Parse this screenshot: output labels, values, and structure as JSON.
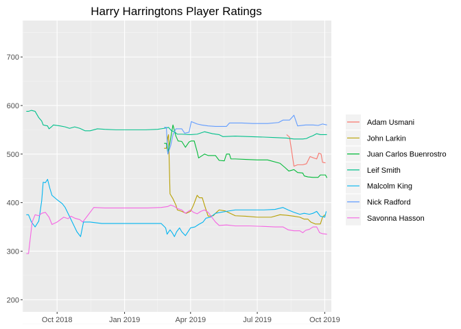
{
  "chart_data": {
    "type": "line",
    "title": "Harry Harringtons Player Ratings",
    "xlabel": "",
    "ylabel": "",
    "x_ticks": [
      "Oct 2018",
      "Jan 2019",
      "Apr 2019",
      "Jul 2019",
      "Oct 2019"
    ],
    "y_ticks": [
      200,
      300,
      400,
      500,
      600,
      700
    ],
    "xlim": [
      "2018-08-15",
      "2019-10-10"
    ],
    "ylim": [
      175,
      775
    ],
    "grid": true,
    "legend_position": "right",
    "colors": {
      "panel": "#ebebeb",
      "grid_major": "#ffffff",
      "text": "#4d4d4d"
    },
    "series": [
      {
        "name": "Adam Usmani",
        "color": "#F8766D",
        "points": [
          [
            "2019-08-10",
            540
          ],
          [
            "2019-08-14",
            535
          ],
          [
            "2019-08-20",
            475
          ],
          [
            "2019-08-25",
            478
          ],
          [
            "2019-09-01",
            478
          ],
          [
            "2019-09-06",
            480
          ],
          [
            "2019-09-11",
            495
          ],
          [
            "2019-09-16",
            492
          ],
          [
            "2019-09-20",
            490
          ],
          [
            "2019-09-23",
            502
          ],
          [
            "2019-09-26",
            500
          ],
          [
            "2019-09-28",
            483
          ],
          [
            "2019-10-02",
            482
          ]
        ]
      },
      {
        "name": "John Larkin",
        "color": "#B79F00",
        "points": [
          [
            "2019-02-24",
            512
          ],
          [
            "2019-02-27",
            512
          ],
          [
            "2019-03-01",
            535
          ],
          [
            "2019-03-02",
            540
          ],
          [
            "2019-03-04",
            418
          ],
          [
            "2019-03-08",
            408
          ],
          [
            "2019-03-12",
            395
          ],
          [
            "2019-03-14",
            385
          ],
          [
            "2019-03-20",
            382
          ],
          [
            "2019-03-26",
            378
          ],
          [
            "2019-04-01",
            382
          ],
          [
            "2019-04-05",
            395
          ],
          [
            "2019-04-10",
            415
          ],
          [
            "2019-04-13",
            410
          ],
          [
            "2019-04-17",
            410
          ],
          [
            "2019-04-20",
            395
          ],
          [
            "2019-04-25",
            372
          ],
          [
            "2019-05-02",
            373
          ],
          [
            "2019-05-05",
            378
          ],
          [
            "2019-05-10",
            385
          ],
          [
            "2019-05-18",
            383
          ],
          [
            "2019-06-01",
            373
          ],
          [
            "2019-06-15",
            372
          ],
          [
            "2019-07-01",
            370
          ],
          [
            "2019-07-20",
            370
          ],
          [
            "2019-08-01",
            375
          ],
          [
            "2019-08-10",
            374
          ],
          [
            "2019-08-20",
            372
          ],
          [
            "2019-08-28",
            370
          ],
          [
            "2019-09-03",
            366
          ],
          [
            "2019-09-08",
            366
          ],
          [
            "2019-09-12",
            360
          ],
          [
            "2019-09-18",
            356
          ],
          [
            "2019-09-25",
            356
          ],
          [
            "2019-09-28",
            370
          ],
          [
            "2019-10-01",
            375
          ]
        ]
      },
      {
        "name": "Juan Carlos Buenrostro",
        "color": "#00BA38",
        "points": [
          [
            "2019-02-24",
            522
          ],
          [
            "2019-02-27",
            522
          ],
          [
            "2019-03-01",
            503
          ],
          [
            "2019-03-04",
            525
          ],
          [
            "2019-03-08",
            560
          ],
          [
            "2019-03-12",
            537
          ],
          [
            "2019-03-15",
            527
          ],
          [
            "2019-03-20",
            526
          ],
          [
            "2019-03-25",
            514
          ],
          [
            "2019-03-30",
            525
          ],
          [
            "2019-04-02",
            527
          ],
          [
            "2019-04-06",
            527
          ],
          [
            "2019-04-10",
            505
          ],
          [
            "2019-04-12",
            492
          ],
          [
            "2019-04-15",
            495
          ],
          [
            "2019-04-20",
            500
          ],
          [
            "2019-04-25",
            497
          ],
          [
            "2019-05-05",
            497
          ],
          [
            "2019-05-10",
            487
          ],
          [
            "2019-05-17",
            486
          ],
          [
            "2019-05-20",
            500
          ],
          [
            "2019-05-24",
            500
          ],
          [
            "2019-05-26",
            490
          ],
          [
            "2019-06-01",
            490
          ],
          [
            "2019-06-15",
            489
          ],
          [
            "2019-07-01",
            488
          ],
          [
            "2019-07-15",
            488
          ],
          [
            "2019-08-01",
            481
          ],
          [
            "2019-08-08",
            472
          ],
          [
            "2019-08-13",
            465
          ],
          [
            "2019-08-20",
            468
          ],
          [
            "2019-08-25",
            462
          ],
          [
            "2019-09-01",
            461
          ],
          [
            "2019-09-03",
            455
          ],
          [
            "2019-09-08",
            453
          ],
          [
            "2019-09-15",
            452
          ],
          [
            "2019-09-22",
            452
          ],
          [
            "2019-09-25",
            457
          ],
          [
            "2019-10-02",
            457
          ],
          [
            "2019-10-04",
            451
          ]
        ]
      },
      {
        "name": "Leif Smith",
        "color": "#00C08B",
        "points": [
          [
            "2018-08-20",
            588
          ],
          [
            "2018-08-23",
            588
          ],
          [
            "2018-08-27",
            590
          ],
          [
            "2018-09-01",
            588
          ],
          [
            "2018-09-06",
            575
          ],
          [
            "2018-09-10",
            568
          ],
          [
            "2018-09-12",
            560
          ],
          [
            "2018-09-18",
            558
          ],
          [
            "2018-09-20",
            552
          ],
          [
            "2018-09-24",
            557
          ],
          [
            "2018-09-26",
            560
          ],
          [
            "2018-10-05",
            558
          ],
          [
            "2018-10-12",
            556
          ],
          [
            "2018-10-18",
            553
          ],
          [
            "2018-10-25",
            556
          ],
          [
            "2018-11-01",
            553
          ],
          [
            "2018-11-08",
            548
          ],
          [
            "2018-11-15",
            548
          ],
          [
            "2018-11-25",
            552
          ],
          [
            "2018-12-05",
            551
          ],
          [
            "2018-12-20",
            550
          ],
          [
            "2019-01-10",
            550
          ],
          [
            "2019-01-30",
            550
          ],
          [
            "2019-02-15",
            551
          ],
          [
            "2019-02-24",
            553
          ],
          [
            "2019-03-02",
            555
          ],
          [
            "2019-03-06",
            548
          ],
          [
            "2019-03-10",
            546
          ],
          [
            "2019-03-14",
            541
          ],
          [
            "2019-03-20",
            541
          ],
          [
            "2019-04-01",
            540
          ],
          [
            "2019-04-10",
            541
          ],
          [
            "2019-04-20",
            546
          ],
          [
            "2019-05-01",
            542
          ],
          [
            "2019-05-10",
            540
          ],
          [
            "2019-05-15",
            536
          ],
          [
            "2019-06-01",
            537
          ],
          [
            "2019-06-20",
            536
          ],
          [
            "2019-07-10",
            535
          ],
          [
            "2019-07-25",
            534
          ],
          [
            "2019-08-10",
            533
          ],
          [
            "2019-08-20",
            531
          ],
          [
            "2019-09-01",
            531
          ],
          [
            "2019-09-06",
            532
          ],
          [
            "2019-09-10",
            535
          ],
          [
            "2019-09-15",
            538
          ],
          [
            "2019-09-20",
            542
          ],
          [
            "2019-09-25",
            540
          ],
          [
            "2019-10-04",
            540
          ]
        ]
      },
      {
        "name": "Malcolm King",
        "color": "#00B4F0",
        "points": [
          [
            "2018-08-20",
            375
          ],
          [
            "2018-08-23",
            375
          ],
          [
            "2018-08-27",
            360
          ],
          [
            "2018-09-01",
            350
          ],
          [
            "2018-09-06",
            362
          ],
          [
            "2018-09-10",
            404
          ],
          [
            "2018-09-12",
            442
          ],
          [
            "2018-09-15",
            441
          ],
          [
            "2018-09-18",
            448
          ],
          [
            "2018-09-21",
            430
          ],
          [
            "2018-09-24",
            415
          ],
          [
            "2018-10-01",
            406
          ],
          [
            "2018-10-08",
            398
          ],
          [
            "2018-10-12",
            390
          ],
          [
            "2018-10-20",
            365
          ],
          [
            "2018-10-28",
            340
          ],
          [
            "2018-11-02",
            330
          ],
          [
            "2018-11-06",
            360
          ],
          [
            "2018-11-15",
            360
          ],
          [
            "2018-12-01",
            357
          ],
          [
            "2018-12-20",
            357
          ],
          [
            "2019-01-10",
            357
          ],
          [
            "2019-02-01",
            357
          ],
          [
            "2019-02-20",
            357
          ],
          [
            "2019-02-26",
            348
          ],
          [
            "2019-02-28",
            335
          ],
          [
            "2019-03-04",
            344
          ],
          [
            "2019-03-07",
            338
          ],
          [
            "2019-03-10",
            330
          ],
          [
            "2019-03-13",
            340
          ],
          [
            "2019-03-17",
            348
          ],
          [
            "2019-03-20",
            340
          ],
          [
            "2019-03-25",
            332
          ],
          [
            "2019-04-01",
            348
          ],
          [
            "2019-04-07",
            350
          ],
          [
            "2019-04-12",
            355
          ],
          [
            "2019-04-18",
            360
          ],
          [
            "2019-04-22",
            368
          ],
          [
            "2019-04-28",
            370
          ],
          [
            "2019-05-05",
            378
          ],
          [
            "2019-05-12",
            380
          ],
          [
            "2019-05-20",
            382
          ],
          [
            "2019-06-01",
            385
          ],
          [
            "2019-06-20",
            385
          ],
          [
            "2019-07-10",
            385
          ],
          [
            "2019-07-25",
            386
          ],
          [
            "2019-08-05",
            390
          ],
          [
            "2019-08-12",
            385
          ],
          [
            "2019-08-20",
            380
          ],
          [
            "2019-08-28",
            376
          ],
          [
            "2019-09-03",
            378
          ],
          [
            "2019-09-10",
            376
          ],
          [
            "2019-09-15",
            378
          ],
          [
            "2019-09-20",
            382
          ],
          [
            "2019-09-25",
            372
          ],
          [
            "2019-10-01",
            370
          ],
          [
            "2019-10-03",
            382
          ]
        ]
      },
      {
        "name": "Nick Radford",
        "color": "#619CFF",
        "points": [
          [
            "2019-02-24",
            555
          ],
          [
            "2019-02-27",
            555
          ],
          [
            "2019-03-01",
            500
          ],
          [
            "2019-03-05",
            518
          ],
          [
            "2019-03-08",
            540
          ],
          [
            "2019-03-12",
            552
          ],
          [
            "2019-03-20",
            552
          ],
          [
            "2019-03-24",
            543
          ],
          [
            "2019-03-30",
            545
          ],
          [
            "2019-04-02",
            567
          ],
          [
            "2019-04-10",
            562
          ],
          [
            "2019-04-16",
            560
          ],
          [
            "2019-04-25",
            558
          ],
          [
            "2019-05-05",
            557
          ],
          [
            "2019-05-20",
            557
          ],
          [
            "2019-05-24",
            564
          ],
          [
            "2019-06-10",
            564
          ],
          [
            "2019-06-25",
            563
          ],
          [
            "2019-07-15",
            563
          ],
          [
            "2019-07-30",
            565
          ],
          [
            "2019-08-05",
            570
          ],
          [
            "2019-08-14",
            570
          ],
          [
            "2019-08-20",
            580
          ],
          [
            "2019-08-25",
            558
          ],
          [
            "2019-09-05",
            560
          ],
          [
            "2019-09-15",
            560
          ],
          [
            "2019-09-22",
            559
          ],
          [
            "2019-09-28",
            562
          ],
          [
            "2019-10-04",
            560
          ]
        ]
      },
      {
        "name": "Savonna Hasson",
        "color": "#F564E3",
        "points": [
          [
            "2018-08-20",
            295
          ],
          [
            "2018-08-23",
            295
          ],
          [
            "2018-08-28",
            360
          ],
          [
            "2018-09-01",
            375
          ],
          [
            "2018-09-06",
            373
          ],
          [
            "2018-09-10",
            378
          ],
          [
            "2018-09-15",
            380
          ],
          [
            "2018-09-20",
            370
          ],
          [
            "2018-09-24",
            355
          ],
          [
            "2018-10-01",
            360
          ],
          [
            "2018-10-10",
            370
          ],
          [
            "2018-10-16",
            367
          ],
          [
            "2018-10-20",
            372
          ],
          [
            "2018-10-25",
            368
          ],
          [
            "2018-11-01",
            365
          ],
          [
            "2018-11-05",
            360
          ],
          [
            "2018-11-15",
            380
          ],
          [
            "2018-11-20",
            390
          ],
          [
            "2018-12-05",
            389
          ],
          [
            "2018-12-20",
            389
          ],
          [
            "2019-01-10",
            389
          ],
          [
            "2019-02-01",
            389
          ],
          [
            "2019-02-20",
            390
          ],
          [
            "2019-03-01",
            392
          ],
          [
            "2019-03-05",
            395
          ],
          [
            "2019-03-10",
            392
          ],
          [
            "2019-03-14",
            388
          ],
          [
            "2019-03-20",
            385
          ],
          [
            "2019-03-25",
            378
          ],
          [
            "2019-04-01",
            385
          ],
          [
            "2019-04-05",
            380
          ],
          [
            "2019-04-10",
            377
          ],
          [
            "2019-04-15",
            382
          ],
          [
            "2019-04-20",
            385
          ],
          [
            "2019-04-25",
            380
          ],
          [
            "2019-05-05",
            360
          ],
          [
            "2019-05-10",
            353
          ],
          [
            "2019-05-20",
            354
          ],
          [
            "2019-06-01",
            352
          ],
          [
            "2019-06-20",
            352
          ],
          [
            "2019-07-10",
            351
          ],
          [
            "2019-07-25",
            350
          ],
          [
            "2019-08-05",
            350
          ],
          [
            "2019-08-12",
            344
          ],
          [
            "2019-08-20",
            342
          ],
          [
            "2019-08-28",
            342
          ],
          [
            "2019-09-01",
            338
          ],
          [
            "2019-09-05",
            343
          ],
          [
            "2019-09-10",
            345
          ],
          [
            "2019-09-15",
            350
          ],
          [
            "2019-09-20",
            350
          ],
          [
            "2019-09-24",
            338
          ],
          [
            "2019-09-28",
            336
          ],
          [
            "2019-10-04",
            335
          ]
        ]
      }
    ]
  }
}
